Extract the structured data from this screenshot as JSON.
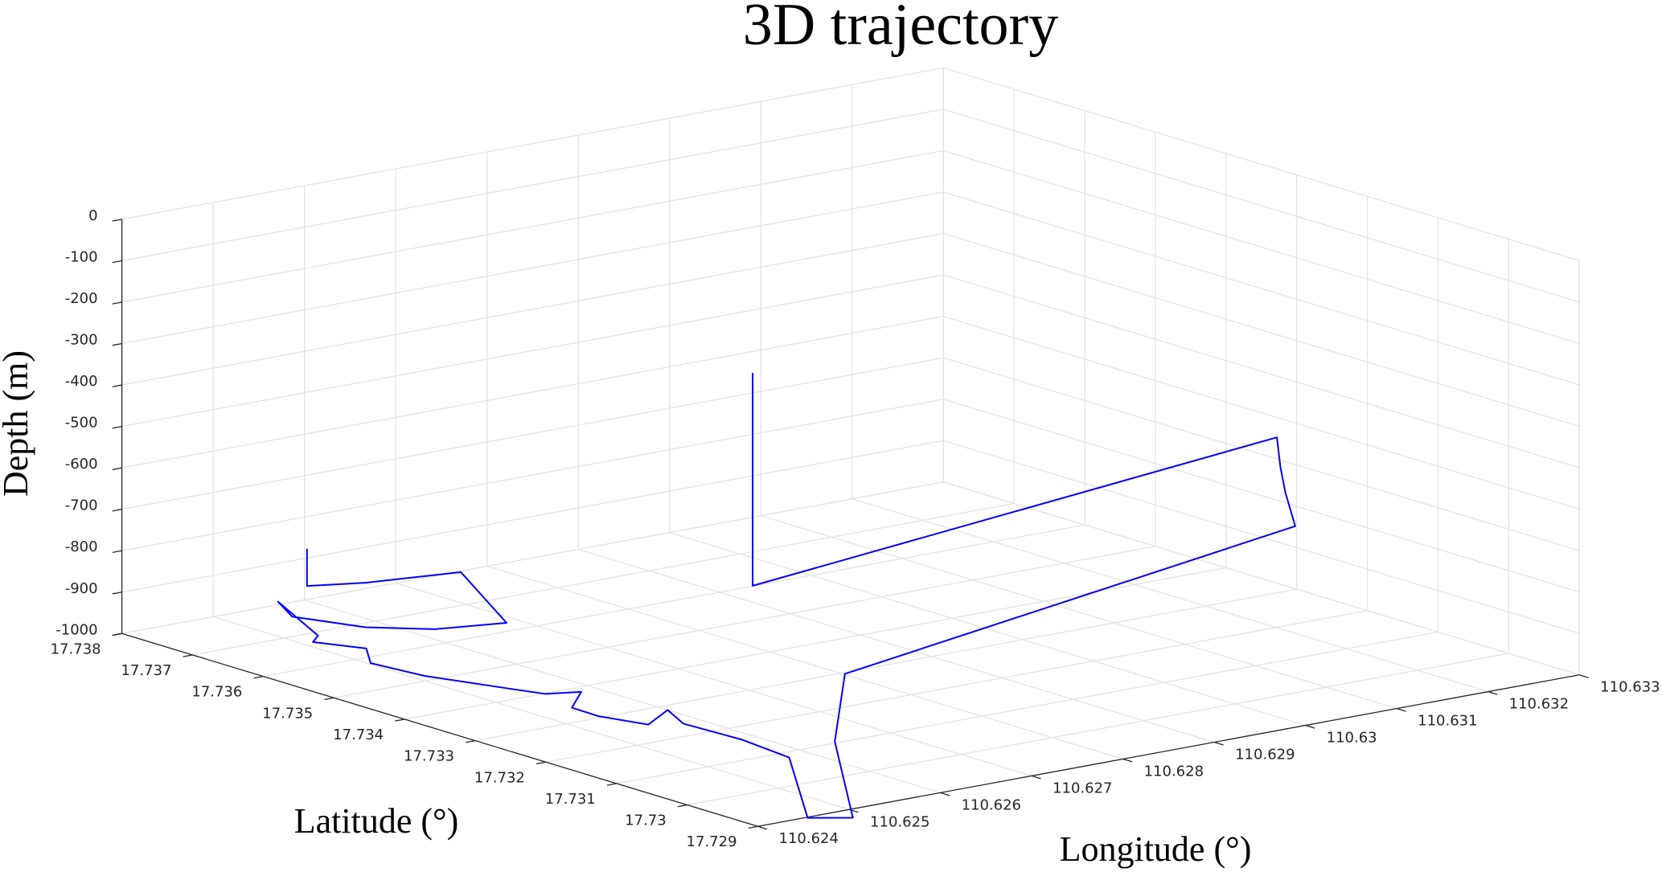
{
  "chart_data": {
    "type": "line3d",
    "title": "3D trajectory",
    "xlabel": "Longitude (°)",
    "ylabel": "Latitude (°)",
    "zlabel": "Depth (m)",
    "color": "#0000ff",
    "grid": true,
    "x": [
      110.62633,
      110.62633,
      110.6268,
      110.62769,
      110.62686,
      110.62623,
      110.6258,
      110.62554,
      110.62578,
      110.62529,
      110.62511,
      110.62533,
      110.62503,
      110.62511,
      110.6254,
      110.62553,
      110.62582,
      110.6254,
      110.62539,
      110.62554,
      110.626,
      110.6258,
      110.62584,
      110.62576,
      110.62453,
      110.62484,
      110.62643,
      110.62802,
      110.633,
      110.633,
      110.633,
      110.633,
      110.62937,
      110.62937
    ],
    "y": [
      17.73839,
      17.73839,
      17.73817,
      17.73797,
      17.73625,
      17.73645,
      17.73688,
      17.73758,
      17.73809,
      17.73689,
      17.73673,
      17.73626,
      17.73581,
      17.73515,
      17.73433,
      17.73398,
      17.73385,
      17.73344,
      17.73305,
      17.73254,
      17.73286,
      17.73238,
      17.73161,
      17.73083,
      17.72898,
      17.72874,
      17.73105,
      17.73296,
      17.73302,
      17.73316,
      17.73323,
      17.73328,
      17.73601,
      17.73601
    ],
    "z": [
      -910,
      -1000,
      -1000,
      -1000,
      -1000,
      -1000,
      -1000,
      -1000,
      -1000,
      -1000,
      -1000,
      -1000,
      -1000,
      -1000,
      -1000,
      -1000,
      -1000,
      -1000,
      -1000,
      -1000,
      -1000,
      -1000,
      -1000,
      -1000,
      -1000,
      -1000,
      -1000,
      -1000,
      -849,
      -775,
      -717,
      -648,
      -1000,
      -486
    ],
    "xlim": [
      110.624,
      110.633
    ],
    "ylim": [
      17.729,
      17.738
    ],
    "zlim": [
      -1000,
      0
    ],
    "xticks": [
      110.624,
      110.625,
      110.626,
      110.627,
      110.628,
      110.629,
      110.63,
      110.631,
      110.632,
      110.633
    ],
    "yticks": [
      17.729,
      17.73,
      17.731,
      17.732,
      17.733,
      17.734,
      17.735,
      17.736,
      17.737,
      17.738
    ],
    "zticks": [
      -1000,
      -900,
      -800,
      -700,
      -600,
      -500,
      -400,
      -300,
      -200,
      -100,
      0
    ]
  }
}
